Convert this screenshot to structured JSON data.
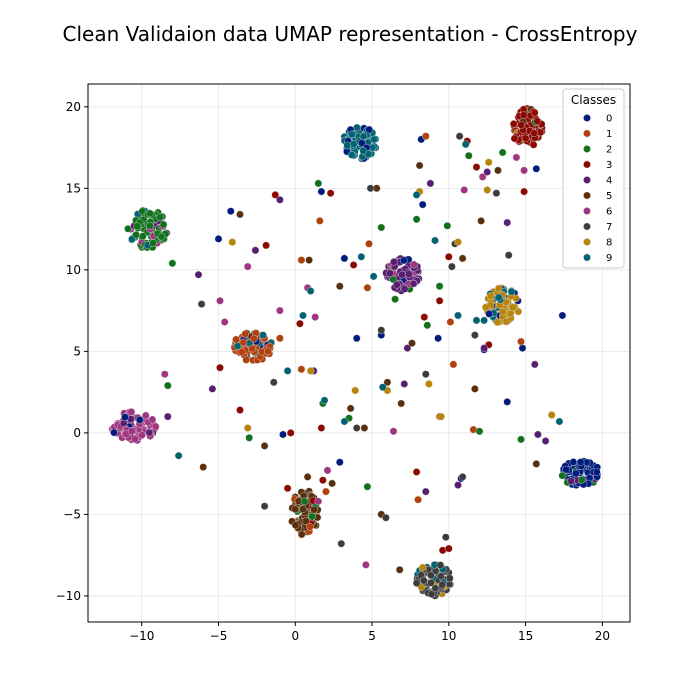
{
  "chart_data": {
    "type": "scatter",
    "title": "Clean Validaion data UMAP representation - CrossEntropy",
    "xlabel": "",
    "ylabel": "",
    "xlim": [
      -13.5,
      21.8
    ],
    "ylim": [
      -11.6,
      21.4
    ],
    "xticks": [
      -10,
      -5,
      0,
      5,
      10,
      15,
      20
    ],
    "yticks": [
      -10,
      -5,
      0,
      5,
      10,
      15,
      20
    ],
    "grid": true,
    "legend": {
      "title": "Classes",
      "position": "top-right",
      "entries": [
        {
          "label": "0",
          "color": "#001c7f"
        },
        {
          "label": "1",
          "color": "#b1400d"
        },
        {
          "label": "2",
          "color": "#12711c"
        },
        {
          "label": "3",
          "color": "#8c0800"
        },
        {
          "label": "4",
          "color": "#591e71"
        },
        {
          "label": "5",
          "color": "#592f0d"
        },
        {
          "label": "6",
          "color": "#a23582"
        },
        {
          "label": "7",
          "color": "#3c3c3c"
        },
        {
          "label": "8",
          "color": "#b8850a"
        },
        {
          "label": "9",
          "color": "#006374"
        }
      ]
    },
    "clusters": [
      {
        "class": "0",
        "cx": 18.6,
        "cy": -2.5,
        "rx": 1.3,
        "ry": 0.8,
        "n": 90,
        "mix": [
          "2",
          "4"
        ]
      },
      {
        "class": "1",
        "cx": -2.8,
        "cy": 5.3,
        "rx": 1.3,
        "ry": 0.9,
        "n": 90,
        "mix": [
          "9",
          "0",
          "5"
        ]
      },
      {
        "class": "2",
        "cx": -9.6,
        "cy": 12.5,
        "rx": 1.3,
        "ry": 1.2,
        "n": 90,
        "mix": [
          "6",
          "9",
          "4"
        ]
      },
      {
        "class": "3",
        "cx": 15.1,
        "cy": 18.7,
        "rx": 1.0,
        "ry": 1.2,
        "n": 80,
        "mix": [
          "2",
          "5",
          "8"
        ]
      },
      {
        "class": "4",
        "cx": 7.0,
        "cy": 9.7,
        "rx": 1.1,
        "ry": 1.0,
        "n": 85,
        "mix": [
          "6",
          "2",
          "0"
        ]
      },
      {
        "class": "5",
        "cx": 0.6,
        "cy": -4.9,
        "rx": 0.9,
        "ry": 1.4,
        "n": 85,
        "mix": [
          "2",
          "1",
          "3"
        ]
      },
      {
        "class": "6",
        "cx": -10.5,
        "cy": 0.4,
        "rx": 1.5,
        "ry": 0.9,
        "n": 90,
        "mix": [
          "4",
          "0"
        ]
      },
      {
        "class": "7",
        "cx": 9.0,
        "cy": -9.0,
        "rx": 1.2,
        "ry": 1.0,
        "n": 85,
        "mix": [
          "8",
          "9"
        ]
      },
      {
        "class": "8",
        "cx": 13.5,
        "cy": 7.8,
        "rx": 1.1,
        "ry": 1.1,
        "n": 80,
        "mix": [
          "0",
          "9"
        ]
      },
      {
        "class": "9",
        "cx": 4.2,
        "cy": 17.8,
        "rx": 1.1,
        "ry": 1.0,
        "n": 80,
        "mix": [
          "0"
        ]
      }
    ],
    "scatter_points": [
      {
        "x": 4.0,
        "y": 5.8,
        "c": "0"
      },
      {
        "x": 9.3,
        "y": 5.8,
        "c": "0"
      },
      {
        "x": 13.8,
        "y": 1.9,
        "c": "0"
      },
      {
        "x": 15.7,
        "y": 16.2,
        "c": "0"
      },
      {
        "x": 17.4,
        "y": 7.2,
        "c": "0"
      },
      {
        "x": 14.8,
        "y": 5.2,
        "c": "0"
      },
      {
        "x": 8.2,
        "y": 18.0,
        "c": "0"
      },
      {
        "x": -5.0,
        "y": 11.9,
        "c": "0"
      },
      {
        "x": -0.8,
        "y": -0.1,
        "c": "0"
      },
      {
        "x": 2.9,
        "y": -1.8,
        "c": "0"
      },
      {
        "x": 12.3,
        "y": 5.1,
        "c": "0"
      },
      {
        "x": 3.2,
        "y": 10.7,
        "c": "0"
      },
      {
        "x": 8.3,
        "y": 14.0,
        "c": "0"
      },
      {
        "x": 1.7,
        "y": 14.8,
        "c": "0"
      },
      {
        "x": -4.2,
        "y": 13.6,
        "c": "0"
      },
      {
        "x": 10.8,
        "y": -2.8,
        "c": "0"
      },
      {
        "x": 5.6,
        "y": 6.0,
        "c": "0"
      },
      {
        "x": 8.5,
        "y": 18.2,
        "c": "1"
      },
      {
        "x": 1.6,
        "y": 13.0,
        "c": "1"
      },
      {
        "x": 4.8,
        "y": 11.6,
        "c": "1"
      },
      {
        "x": 10.3,
        "y": 4.2,
        "c": "1"
      },
      {
        "x": 11.6,
        "y": 0.2,
        "c": "1"
      },
      {
        "x": 14.7,
        "y": 5.6,
        "c": "1"
      },
      {
        "x": 0.4,
        "y": 3.9,
        "c": "1"
      },
      {
        "x": 2.0,
        "y": -3.6,
        "c": "1"
      },
      {
        "x": 9.4,
        "y": 1.0,
        "c": "1"
      },
      {
        "x": 0.4,
        "y": 10.6,
        "c": "1"
      },
      {
        "x": 8.0,
        "y": -4.1,
        "c": "1"
      },
      {
        "x": 4.7,
        "y": 8.9,
        "c": "1"
      },
      {
        "x": 10.1,
        "y": 6.8,
        "c": "1"
      },
      {
        "x": -1.0,
        "y": 5.8,
        "c": "1"
      },
      {
        "x": -8.0,
        "y": 10.4,
        "c": "2"
      },
      {
        "x": -8.3,
        "y": 2.9,
        "c": "2"
      },
      {
        "x": -3.0,
        "y": -0.3,
        "c": "2"
      },
      {
        "x": 1.5,
        "y": 15.3,
        "c": "2"
      },
      {
        "x": 4.7,
        "y": -3.3,
        "c": "2"
      },
      {
        "x": 7.9,
        "y": 13.1,
        "c": "2"
      },
      {
        "x": 9.9,
        "y": 12.7,
        "c": "2"
      },
      {
        "x": 14.7,
        "y": -0.4,
        "c": "2"
      },
      {
        "x": 13.5,
        "y": 17.2,
        "c": "2"
      },
      {
        "x": 11.3,
        "y": 17.0,
        "c": "2"
      },
      {
        "x": 5.6,
        "y": 12.6,
        "c": "2"
      },
      {
        "x": 3.5,
        "y": 0.9,
        "c": "2"
      },
      {
        "x": 8.6,
        "y": 6.6,
        "c": "2"
      },
      {
        "x": 12.0,
        "y": 0.1,
        "c": "2"
      },
      {
        "x": 6.5,
        "y": 8.2,
        "c": "2"
      },
      {
        "x": 9.4,
        "y": 9.0,
        "c": "2"
      },
      {
        "x": 1.8,
        "y": 1.8,
        "c": "2"
      },
      {
        "x": 0.6,
        "y": -4.2,
        "c": "2"
      },
      {
        "x": -0.5,
        "y": -3.4,
        "c": "3"
      },
      {
        "x": 1.7,
        "y": 0.3,
        "c": "3"
      },
      {
        "x": 2.3,
        "y": 14.7,
        "c": "3"
      },
      {
        "x": -1.3,
        "y": 14.6,
        "c": "3"
      },
      {
        "x": 3.8,
        "y": 10.3,
        "c": "3"
      },
      {
        "x": 7.9,
        "y": -2.4,
        "c": "3"
      },
      {
        "x": 10.0,
        "y": 10.8,
        "c": "3"
      },
      {
        "x": 11.2,
        "y": 17.9,
        "c": "3"
      },
      {
        "x": 14.9,
        "y": 14.8,
        "c": "3"
      },
      {
        "x": -4.9,
        "y": 4.0,
        "c": "3"
      },
      {
        "x": -3.6,
        "y": 1.4,
        "c": "3"
      },
      {
        "x": -1.9,
        "y": 11.5,
        "c": "3"
      },
      {
        "x": 9.4,
        "y": 8.1,
        "c": "3"
      },
      {
        "x": 12.6,
        "y": 5.4,
        "c": "3"
      },
      {
        "x": 8.4,
        "y": 7.1,
        "c": "3"
      },
      {
        "x": 0.3,
        "y": 6.7,
        "c": "3"
      },
      {
        "x": 9.6,
        "y": -7.2,
        "c": "3"
      },
      {
        "x": 10.0,
        "y": -7.1,
        "c": "3"
      },
      {
        "x": 1.8,
        "y": -2.9,
        "c": "3"
      },
      {
        "x": 11.8,
        "y": 16.3,
        "c": "3"
      },
      {
        "x": -0.3,
        "y": 0.0,
        "c": "3"
      },
      {
        "x": -5.4,
        "y": 2.7,
        "c": "4"
      },
      {
        "x": -1.0,
        "y": 14.3,
        "c": "4"
      },
      {
        "x": 8.8,
        "y": 15.3,
        "c": "4"
      },
      {
        "x": 12.5,
        "y": 16.0,
        "c": "4"
      },
      {
        "x": 13.8,
        "y": 12.9,
        "c": "4"
      },
      {
        "x": 15.6,
        "y": 4.2,
        "c": "4"
      },
      {
        "x": 15.8,
        "y": -0.1,
        "c": "4"
      },
      {
        "x": 16.3,
        "y": -0.5,
        "c": "4"
      },
      {
        "x": 10.6,
        "y": -3.2,
        "c": "4"
      },
      {
        "x": 8.5,
        "y": -3.6,
        "c": "4"
      },
      {
        "x": 7.1,
        "y": 3.0,
        "c": "4"
      },
      {
        "x": 7.3,
        "y": 5.2,
        "c": "4"
      },
      {
        "x": -6.3,
        "y": 9.7,
        "c": "4"
      },
      {
        "x": -8.3,
        "y": 1.0,
        "c": "4"
      },
      {
        "x": 12.3,
        "y": 5.2,
        "c": "4"
      },
      {
        "x": -2.6,
        "y": 11.2,
        "c": "4"
      },
      {
        "x": 1.2,
        "y": 3.8,
        "c": "4"
      },
      {
        "x": -3.6,
        "y": 13.4,
        "c": "5"
      },
      {
        "x": 0.9,
        "y": 10.6,
        "c": "5"
      },
      {
        "x": 2.9,
        "y": 9.0,
        "c": "5"
      },
      {
        "x": 5.3,
        "y": 15.0,
        "c": "5"
      },
      {
        "x": 6.9,
        "y": 1.8,
        "c": "5"
      },
      {
        "x": 8.1,
        "y": 16.4,
        "c": "5"
      },
      {
        "x": 11.7,
        "y": 2.7,
        "c": "5"
      },
      {
        "x": 12.1,
        "y": 13.0,
        "c": "5"
      },
      {
        "x": 15.7,
        "y": -1.9,
        "c": "5"
      },
      {
        "x": 13.2,
        "y": 16.1,
        "c": "5"
      },
      {
        "x": 7.6,
        "y": 5.5,
        "c": "5"
      },
      {
        "x": 4.5,
        "y": 0.3,
        "c": "5"
      },
      {
        "x": 5.6,
        "y": -5.0,
        "c": "5"
      },
      {
        "x": 6.8,
        "y": -8.4,
        "c": "5"
      },
      {
        "x": -6.0,
        "y": -2.1,
        "c": "5"
      },
      {
        "x": -2.0,
        "y": -0.8,
        "c": "5"
      },
      {
        "x": 0.8,
        "y": -2.7,
        "c": "5"
      },
      {
        "x": 2.4,
        "y": -3.1,
        "c": "5"
      },
      {
        "x": 6.0,
        "y": 3.1,
        "c": "5"
      },
      {
        "x": 3.6,
        "y": 1.5,
        "c": "5"
      },
      {
        "x": 10.9,
        "y": 10.7,
        "c": "5"
      },
      {
        "x": -8.5,
        "y": 3.6,
        "c": "6"
      },
      {
        "x": -4.6,
        "y": 6.8,
        "c": "6"
      },
      {
        "x": -3.1,
        "y": 10.2,
        "c": "6"
      },
      {
        "x": 0.8,
        "y": 8.9,
        "c": "6"
      },
      {
        "x": 1.3,
        "y": 7.1,
        "c": "6"
      },
      {
        "x": 4.6,
        "y": -8.1,
        "c": "6"
      },
      {
        "x": 6.4,
        "y": 0.1,
        "c": "6"
      },
      {
        "x": 14.4,
        "y": 16.9,
        "c": "6"
      },
      {
        "x": 14.9,
        "y": 16.1,
        "c": "6"
      },
      {
        "x": 12.2,
        "y": 15.7,
        "c": "6"
      },
      {
        "x": -4.9,
        "y": 8.1,
        "c": "6"
      },
      {
        "x": 1.5,
        "y": -4.2,
        "c": "6"
      },
      {
        "x": 2.1,
        "y": -2.3,
        "c": "6"
      },
      {
        "x": 11.0,
        "y": 14.9,
        "c": "6"
      },
      {
        "x": -1.0,
        "y": 7.5,
        "c": "6"
      },
      {
        "x": -6.1,
        "y": 7.9,
        "c": "7"
      },
      {
        "x": -2.0,
        "y": -4.5,
        "c": "7"
      },
      {
        "x": -1.4,
        "y": 3.1,
        "c": "7"
      },
      {
        "x": 4.9,
        "y": 15.0,
        "c": "7"
      },
      {
        "x": 10.7,
        "y": 18.2,
        "c": "7"
      },
      {
        "x": 11.7,
        "y": 6.0,
        "c": "7"
      },
      {
        "x": 13.9,
        "y": 10.9,
        "c": "7"
      },
      {
        "x": 13.1,
        "y": 14.7,
        "c": "7"
      },
      {
        "x": 8.5,
        "y": 3.6,
        "c": "7"
      },
      {
        "x": 5.9,
        "y": -5.2,
        "c": "7"
      },
      {
        "x": 3.0,
        "y": -6.8,
        "c": "7"
      },
      {
        "x": 4.0,
        "y": 0.3,
        "c": "7"
      },
      {
        "x": 10.2,
        "y": 10.2,
        "c": "7"
      },
      {
        "x": 10.4,
        "y": 11.6,
        "c": "7"
      },
      {
        "x": 10.9,
        "y": -2.7,
        "c": "7"
      },
      {
        "x": 5.6,
        "y": 6.3,
        "c": "7"
      },
      {
        "x": 9.8,
        "y": -6.4,
        "c": "7"
      },
      {
        "x": -4.1,
        "y": 11.7,
        "c": "8"
      },
      {
        "x": -3.1,
        "y": 0.3,
        "c": "8"
      },
      {
        "x": 3.9,
        "y": 2.6,
        "c": "8"
      },
      {
        "x": 8.1,
        "y": 14.8,
        "c": "8"
      },
      {
        "x": 10.6,
        "y": 11.7,
        "c": "8"
      },
      {
        "x": 12.5,
        "y": 14.9,
        "c": "8"
      },
      {
        "x": 12.6,
        "y": 16.6,
        "c": "8"
      },
      {
        "x": 16.7,
        "y": 1.1,
        "c": "8"
      },
      {
        "x": 8.7,
        "y": 3.0,
        "c": "8"
      },
      {
        "x": 1.0,
        "y": 3.8,
        "c": "8"
      },
      {
        "x": 9.5,
        "y": 1.0,
        "c": "8"
      },
      {
        "x": 6.0,
        "y": 2.6,
        "c": "8"
      },
      {
        "x": -7.6,
        "y": -1.4,
        "c": "9"
      },
      {
        "x": -2.1,
        "y": 6.0,
        "c": "9"
      },
      {
        "x": -0.5,
        "y": 3.8,
        "c": "9"
      },
      {
        "x": 1.0,
        "y": 8.7,
        "c": "9"
      },
      {
        "x": 1.9,
        "y": 2.0,
        "c": "9"
      },
      {
        "x": 3.2,
        "y": 0.7,
        "c": "9"
      },
      {
        "x": 4.3,
        "y": 10.8,
        "c": "9"
      },
      {
        "x": 9.1,
        "y": 11.8,
        "c": "9"
      },
      {
        "x": 11.1,
        "y": 17.7,
        "c": "9"
      },
      {
        "x": 12.3,
        "y": 6.9,
        "c": "9"
      },
      {
        "x": 17.2,
        "y": 0.7,
        "c": "9"
      },
      {
        "x": 7.9,
        "y": 14.6,
        "c": "9"
      },
      {
        "x": 11.8,
        "y": 6.9,
        "c": "9"
      },
      {
        "x": 0.5,
        "y": 7.2,
        "c": "9"
      },
      {
        "x": 5.1,
        "y": 9.6,
        "c": "9"
      },
      {
        "x": 5.7,
        "y": 2.8,
        "c": "9"
      },
      {
        "x": 10.6,
        "y": 7.2,
        "c": "9"
      }
    ]
  }
}
